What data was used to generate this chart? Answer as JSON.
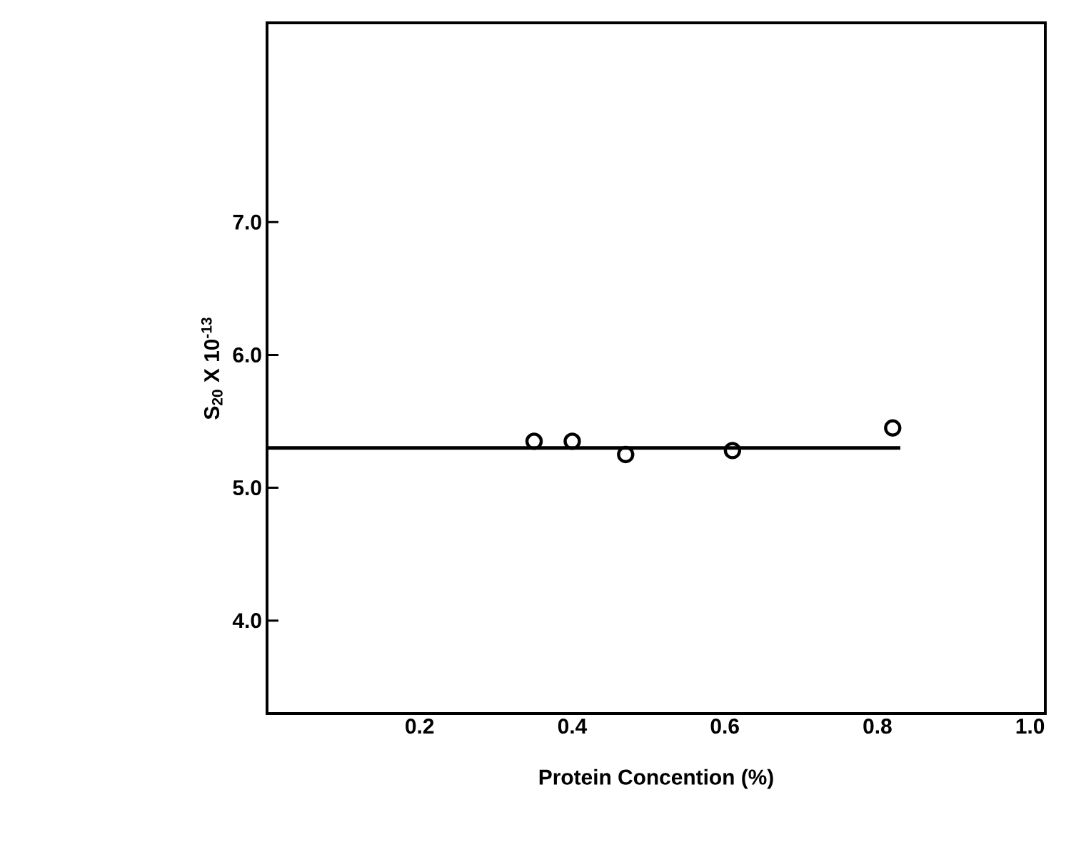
{
  "chart_data": {
    "type": "scatter",
    "xlabel": "Protein Concention (%)",
    "ylabel": "S$_{20}$ X 10$^{-13}$",
    "xlim": [
      0,
      1.02
    ],
    "ylim": [
      3.3,
      8.5
    ],
    "xticks": [
      0.2,
      0.4,
      0.6,
      0.8,
      {
        "value": 1,
        "label": "1.0"
      }
    ],
    "yticks": [
      {
        "value": 4,
        "label": "4.0"
      },
      {
        "value": 5,
        "label": "5.0"
      },
      {
        "value": 6,
        "label": "6.0"
      },
      {
        "value": 7,
        "label": "7.0"
      }
    ],
    "marker": "circle",
    "series": [
      {
        "color": "#000000",
        "x": [
          0.35,
          0.4,
          0.47,
          0.61,
          0.82
        ],
        "values": [
          5.35,
          5.35,
          5.25,
          5.28,
          5.45
        ]
      },
      {
        "type": "line",
        "color": "#000000",
        "marker": "none",
        "line_style": "solid",
        "x": [
          0,
          0.83
        ],
        "values": [
          5.3,
          5.3
        ]
      }
    ]
  }
}
